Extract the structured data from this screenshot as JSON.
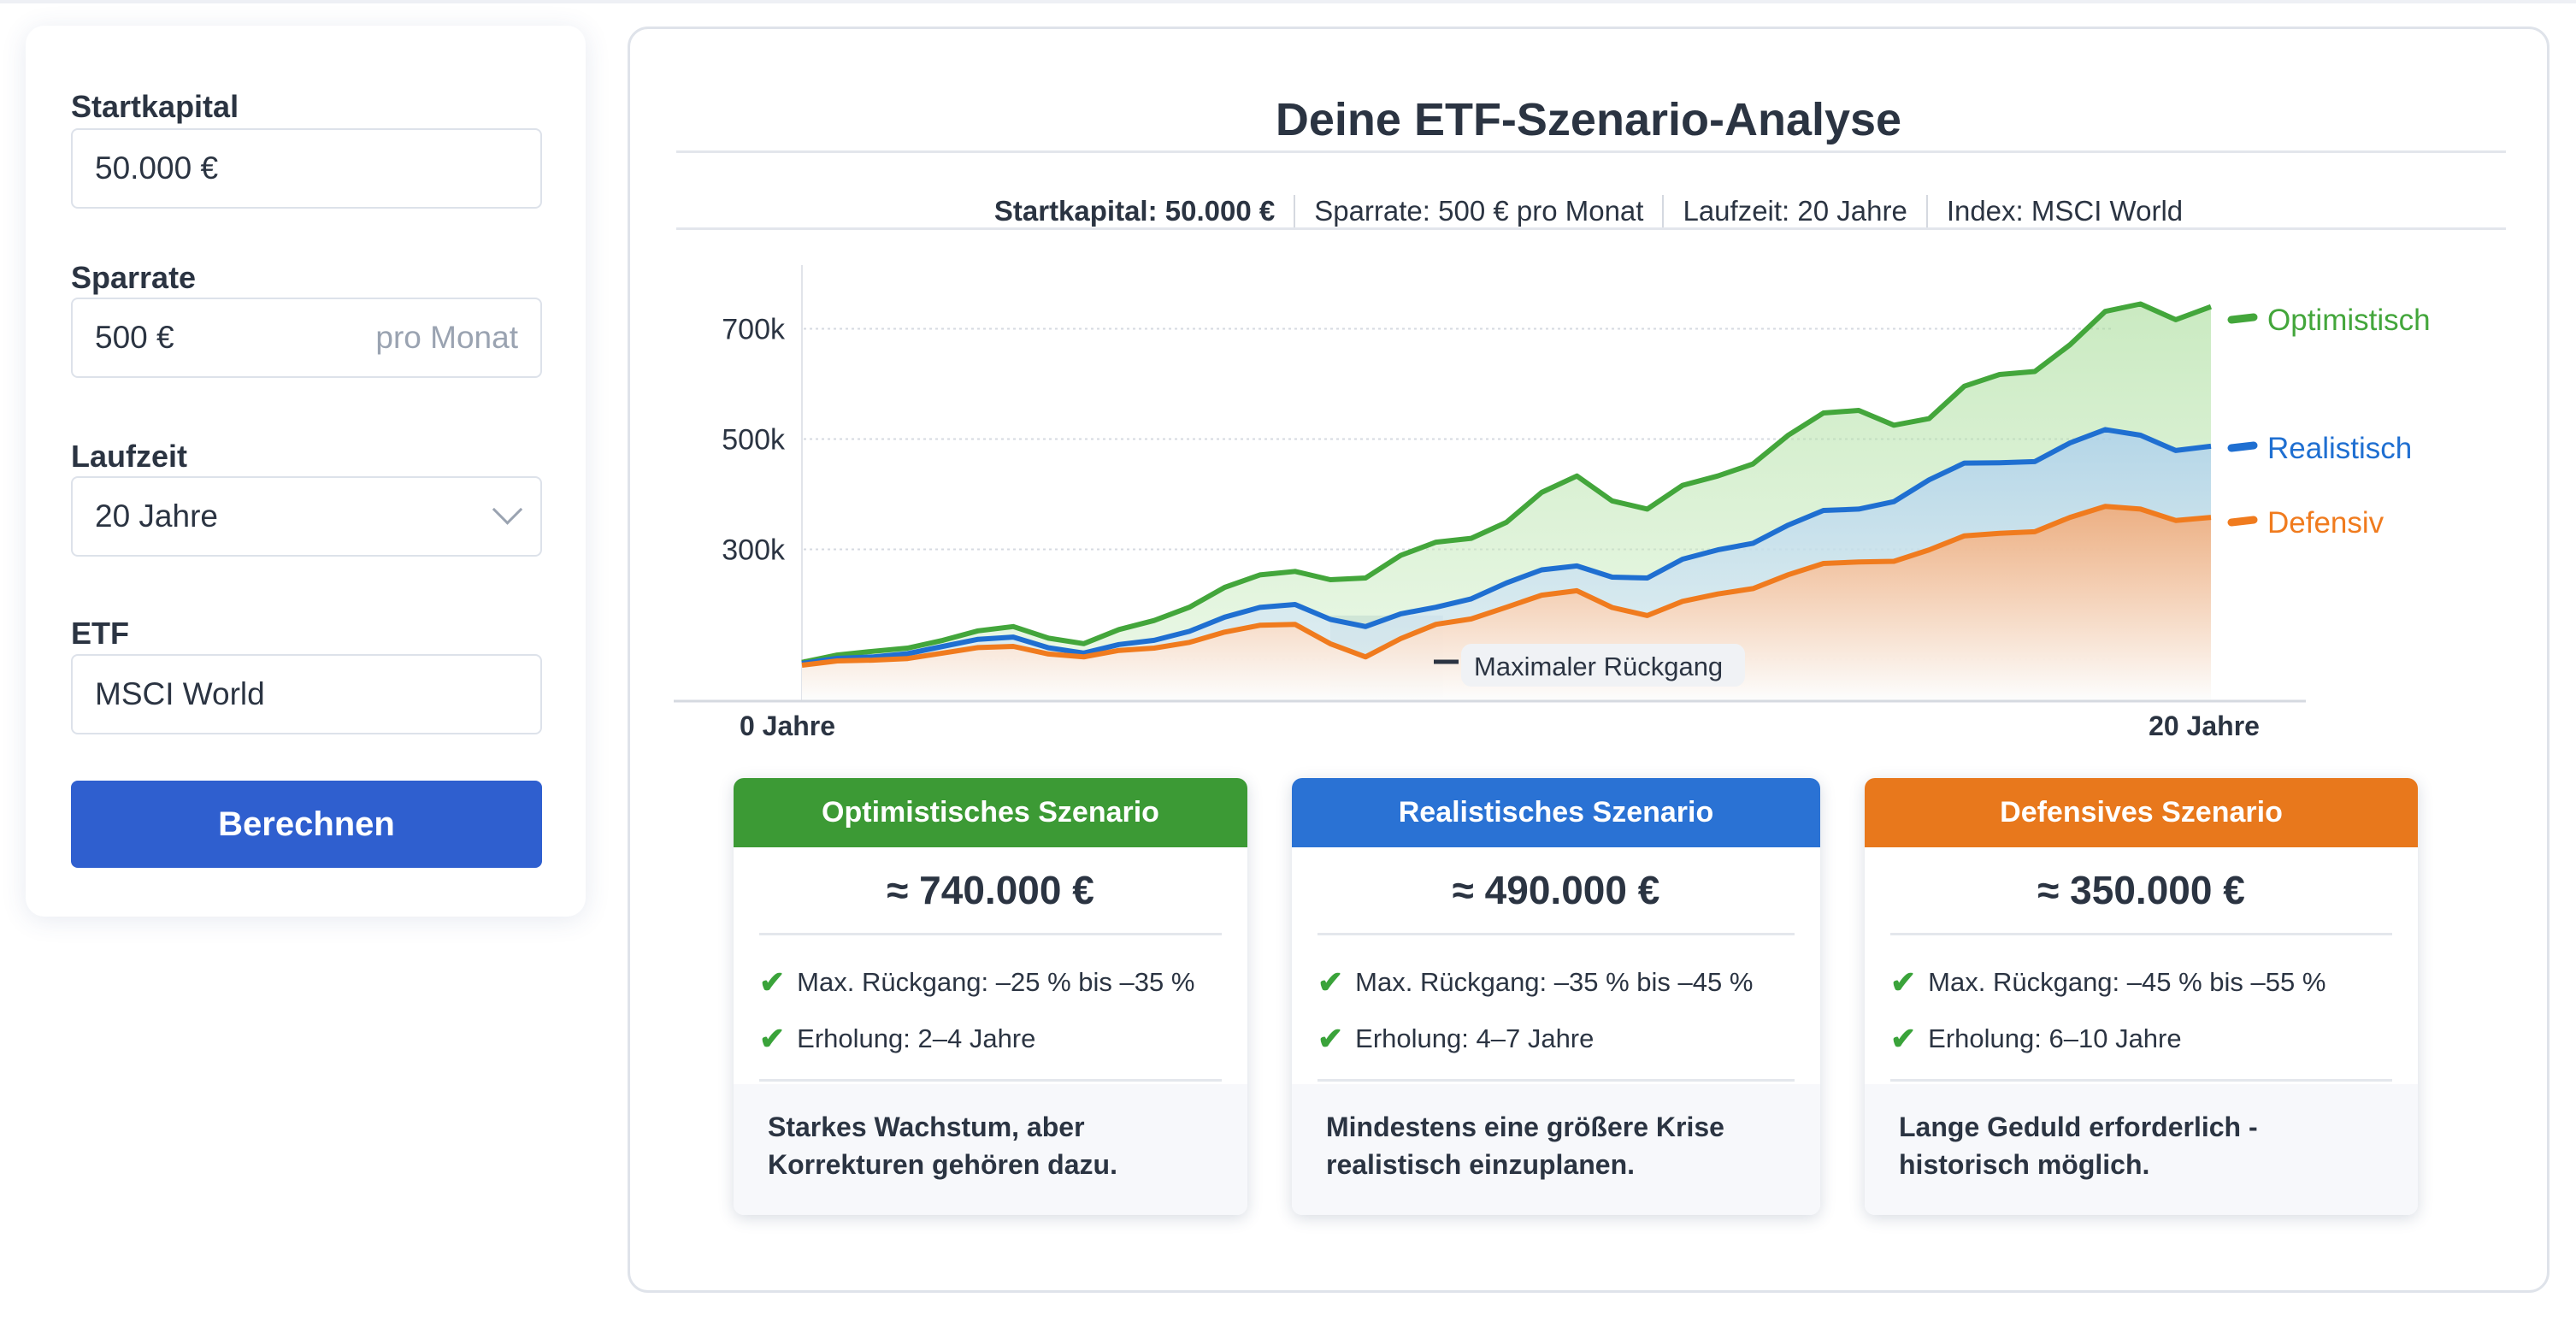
{
  "form": {
    "startkapital": {
      "label": "Startkapital",
      "value": "50.000 €"
    },
    "sparrate": {
      "label": "Sparrate",
      "value": "500 €",
      "suffix": "pro Monat"
    },
    "laufzeit": {
      "label": "Laufzeit",
      "value": "20 Jahre"
    },
    "etf": {
      "label": "ETF",
      "value": "MSCI World"
    },
    "submit_label": "Berechnen",
    "accent": "#2f5fcf"
  },
  "analysis": {
    "title": "Deine ETF-Szenario-Analyse",
    "summary": [
      "Startkapital: 50.000 €",
      "Sparrate: 500 € pro Monat",
      "Laufzeit: 20 Jahre",
      "Index: MSCI World"
    ]
  },
  "chart_data": {
    "type": "area",
    "x": [
      0,
      1,
      2,
      3,
      4,
      5,
      6,
      7,
      8,
      9,
      10,
      11,
      12,
      13,
      14,
      15,
      16,
      17,
      18,
      19,
      20
    ],
    "xticks": [
      {
        "value": 0,
        "label": "0 Jahre"
      },
      {
        "value": 20,
        "label": "20 Jahre"
      }
    ],
    "yticks": [
      {
        "value": 300,
        "label": "300k"
      },
      {
        "value": 500,
        "label": "500k"
      },
      {
        "value": 700,
        "label": "700k"
      }
    ],
    "ylim": [
      0,
      780
    ],
    "grid": true,
    "legend": "right",
    "series": [
      {
        "name": "Optimistisch",
        "color": "#43a63b",
        "values": [
          95,
          115,
          135,
          160,
          129,
          171,
          231,
          260,
          248,
          313,
          349,
          433,
          373,
          433,
          507,
          552,
          537,
          617,
          671,
          745,
          740
        ]
      },
      {
        "name": "Realistisch",
        "color": "#1f6fd1",
        "values": [
          93,
          105,
          124,
          141,
          112,
          135,
          177,
          200,
          160,
          195,
          239,
          270,
          248,
          299,
          344,
          373,
          426,
          457,
          493,
          507,
          487
        ]
      },
      {
        "name": "Defensiv",
        "color": "#f07b1e",
        "values": [
          90,
          99,
          112,
          124,
          105,
          121,
          150,
          164,
          105,
          164,
          195,
          225,
          180,
          219,
          254,
          277,
          299,
          329,
          358,
          373,
          358
        ]
      }
    ],
    "annotation": {
      "label": "Maximaler Rückgang",
      "x_range": [
        7.5,
        9.1
      ]
    }
  },
  "cards": [
    {
      "title": "Optimistisches Szenario",
      "color": "#3c9a35",
      "amount": "≈ 740.000 €",
      "bullets": [
        "Max. Rückgang: –25 % bis –35 %",
        "Erholung: 2–4 Jahre"
      ],
      "note": "Starkes Wachstum, aber Korrekturen gehören dazu."
    },
    {
      "title": "Realistisches Szenario",
      "color": "#2a72d4",
      "amount": "≈ 490.000 €",
      "bullets": [
        "Max. Rückgang: –35 % bis –45 %",
        "Erholung: 4–7 Jahre"
      ],
      "note": "Mindestens eine größere Krise realistisch einzuplanen."
    },
    {
      "title": "Defensives Szenario",
      "color": "#e8781c",
      "amount": "≈ 350.000 €",
      "bullets": [
        "Max. Rückgang: –45 % bis –55 %",
        "Erholung: 6–10 Jahre"
      ],
      "note": "Lange Geduld erforderlich - historisch möglich."
    }
  ],
  "icons": {
    "check": "check-icon",
    "dropdown": "chevron-down-icon"
  }
}
